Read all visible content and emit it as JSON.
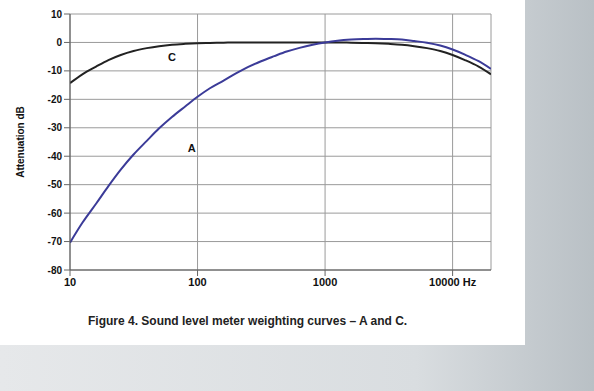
{
  "chart_data": {
    "type": "line",
    "title": "Figure 4. Sound level meter weighting curves – A and C.",
    "ylabel": "Attenuation dB",
    "log": "x",
    "grid": true,
    "x": [
      10,
      12.5,
      16,
      20,
      25,
      31.5,
      40,
      50,
      63,
      80,
      100,
      125,
      160,
      200,
      250,
      315,
      400,
      500,
      630,
      800,
      1000,
      1250,
      1600,
      2000,
      2500,
      3150,
      4000,
      5000,
      6300,
      8000,
      10000,
      12500,
      16000,
      20000
    ],
    "series": [
      {
        "name": "C",
        "color": "#222222",
        "label_x": 63,
        "label_y": -5,
        "values": [
          -14.3,
          -11.2,
          -8.5,
          -6.2,
          -4.4,
          -3.0,
          -2.0,
          -1.3,
          -0.8,
          -0.5,
          -0.3,
          -0.2,
          -0.1,
          0,
          0,
          0,
          0,
          0,
          0,
          0,
          0,
          0,
          -0.1,
          -0.2,
          -0.3,
          -0.5,
          -0.8,
          -1.3,
          -2.0,
          -3.0,
          -4.4,
          -6.2,
          -8.5,
          -11.2
        ]
      },
      {
        "name": "A",
        "color": "#3b3b98",
        "label_x": 90,
        "label_y": -37,
        "values": [
          -70.4,
          -63.4,
          -56.7,
          -50.5,
          -44.7,
          -39.4,
          -34.6,
          -30.2,
          -26.2,
          -22.5,
          -19.1,
          -16.1,
          -13.4,
          -10.9,
          -8.6,
          -6.6,
          -4.8,
          -3.2,
          -1.9,
          -0.8,
          0,
          0.6,
          1.0,
          1.2,
          1.3,
          1.2,
          1.0,
          0.5,
          -0.1,
          -1.1,
          -2.5,
          -4.3,
          -6.6,
          -9.3
        ]
      }
    ],
    "xlim": [
      10,
      20000
    ],
    "xticks": [
      10,
      100,
      1000,
      {
        "value": 10000,
        "label": "10000 Hz"
      }
    ],
    "ylim": [
      -80,
      10
    ],
    "yticks": [
      10,
      0,
      -10,
      -20,
      -30,
      -40,
      -50,
      -60,
      -70,
      -80
    ]
  }
}
